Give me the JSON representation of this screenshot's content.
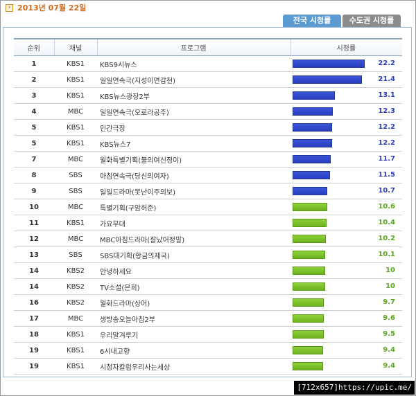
{
  "date_label": "2013년 07월 22일",
  "tabs": [
    {
      "label": "전국 시청률",
      "active": true
    },
    {
      "label": "수도권 시청률",
      "active": false
    }
  ],
  "table": {
    "headers": {
      "rank": "순위",
      "channel": "채널",
      "program": "프로그램",
      "rating": "시청률"
    },
    "max_rating": 22.2,
    "rows": [
      {
        "rank": "1",
        "channel": "KBS1",
        "program": "KBS9시뉴스",
        "rating": 22.2,
        "rating_text": "22.2",
        "bar_color": "blue"
      },
      {
        "rank": "2",
        "channel": "KBS1",
        "program": "일일연속극(지성이면감천)",
        "rating": 21.4,
        "rating_text": "21.4",
        "bar_color": "blue"
      },
      {
        "rank": "3",
        "channel": "KBS1",
        "program": "KBS뉴스광장2부",
        "rating": 13.1,
        "rating_text": "13.1",
        "bar_color": "blue"
      },
      {
        "rank": "4",
        "channel": "MBC",
        "program": "일일연속극(오로라공주)",
        "rating": 12.3,
        "rating_text": "12.3",
        "bar_color": "blue"
      },
      {
        "rank": "5",
        "channel": "KBS1",
        "program": "인간극장",
        "rating": 12.2,
        "rating_text": "12.2",
        "bar_color": "blue"
      },
      {
        "rank": "5",
        "channel": "KBS1",
        "program": "KBS뉴스7",
        "rating": 12.2,
        "rating_text": "12.2",
        "bar_color": "blue"
      },
      {
        "rank": "7",
        "channel": "MBC",
        "program": "월화특별기획(불의여신정이)",
        "rating": 11.7,
        "rating_text": "11.7",
        "bar_color": "blue"
      },
      {
        "rank": "8",
        "channel": "SBS",
        "program": "아침연속극(당신의여자)",
        "rating": 11.5,
        "rating_text": "11.5",
        "bar_color": "blue"
      },
      {
        "rank": "9",
        "channel": "SBS",
        "program": "일일드라마(못난이주의보)",
        "rating": 10.7,
        "rating_text": "10.7",
        "bar_color": "blue"
      },
      {
        "rank": "10",
        "channel": "MBC",
        "program": "특별기획(구암허준)",
        "rating": 10.6,
        "rating_text": "10.6",
        "bar_color": "green"
      },
      {
        "rank": "11",
        "channel": "KBS1",
        "program": "가요무대",
        "rating": 10.4,
        "rating_text": "10.4",
        "bar_color": "green"
      },
      {
        "rank": "12",
        "channel": "MBC",
        "program": "MBC아침드라마(잘났어정말)",
        "rating": 10.2,
        "rating_text": "10.2",
        "bar_color": "green"
      },
      {
        "rank": "13",
        "channel": "SBS",
        "program": "SBS대기획(황금의제국)",
        "rating": 10.1,
        "rating_text": "10.1",
        "bar_color": "green"
      },
      {
        "rank": "14",
        "channel": "KBS2",
        "program": "안녕하세요",
        "rating": 10,
        "rating_text": "10",
        "bar_color": "green"
      },
      {
        "rank": "14",
        "channel": "KBS2",
        "program": "TV소설(은희)",
        "rating": 10,
        "rating_text": "10",
        "bar_color": "green"
      },
      {
        "rank": "16",
        "channel": "KBS2",
        "program": "월화드라마(상어)",
        "rating": 9.7,
        "rating_text": "9.7",
        "bar_color": "green"
      },
      {
        "rank": "17",
        "channel": "MBC",
        "program": "생방송오늘아침2부",
        "rating": 9.6,
        "rating_text": "9.6",
        "bar_color": "green"
      },
      {
        "rank": "18",
        "channel": "KBS1",
        "program": "우리말겨루기",
        "rating": 9.5,
        "rating_text": "9.5",
        "bar_color": "green"
      },
      {
        "rank": "19",
        "channel": "KBS1",
        "program": "6시내고향",
        "rating": 9.4,
        "rating_text": "9.4",
        "bar_color": "green"
      },
      {
        "rank": "19",
        "channel": "KBS1",
        "program": "시청자칼럼우리사는세상",
        "rating": 9.4,
        "rating_text": "9.4",
        "bar_color": "green"
      }
    ]
  },
  "colors": {
    "blue_bar": "#2a3fc0",
    "green_bar": "#6cb31f",
    "date_text": "#d2691e"
  },
  "footer_label": "[712x657]https://upic.me/"
}
